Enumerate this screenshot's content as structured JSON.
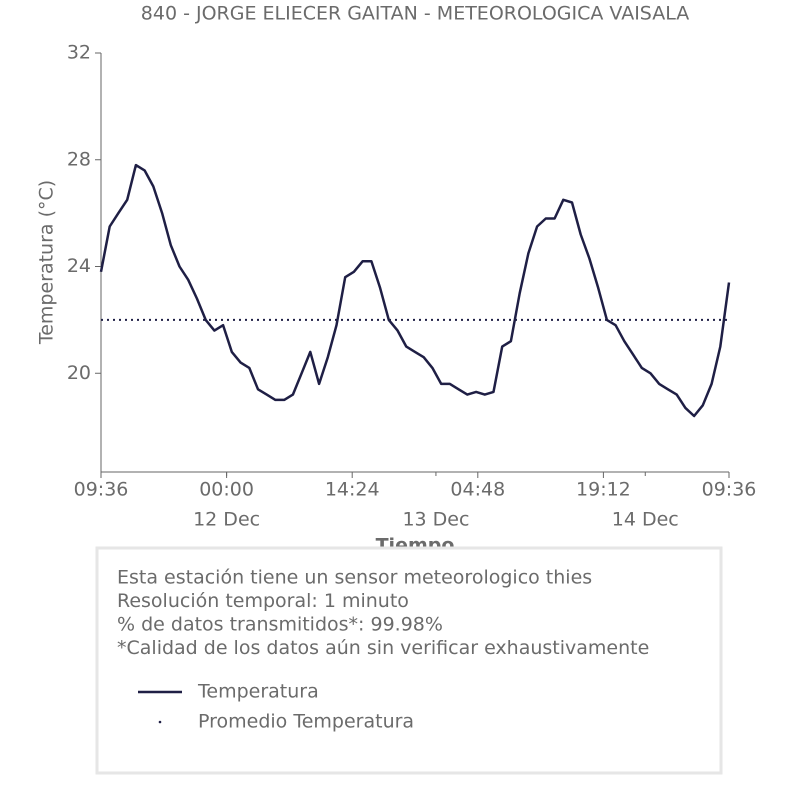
{
  "chart_data": {
    "type": "line",
    "title": "840 - JORGE ELIECER GAITAN - METEOROLOGICA VAISALA",
    "x_label": "Tiempo",
    "y_label": "Temperatura (°C)",
    "x": [
      "11 Dec 09:36",
      "11 Dec 10:36",
      "11 Dec 11:36",
      "11 Dec 12:36",
      "11 Dec 13:36",
      "11 Dec 14:36",
      "11 Dec 15:36",
      "11 Dec 16:36",
      "11 Dec 17:36",
      "11 Dec 18:36",
      "11 Dec 19:36",
      "11 Dec 20:36",
      "11 Dec 21:36",
      "11 Dec 22:36",
      "11 Dec 23:36",
      "12 Dec 00:36",
      "12 Dec 01:36",
      "12 Dec 02:36",
      "12 Dec 03:36",
      "12 Dec 04:36",
      "12 Dec 05:36",
      "12 Dec 06:36",
      "12 Dec 07:36",
      "12 Dec 08:36",
      "12 Dec 09:36",
      "12 Dec 10:36",
      "12 Dec 11:36",
      "12 Dec 12:36",
      "12 Dec 13:36",
      "12 Dec 14:36",
      "12 Dec 15:36",
      "12 Dec 16:36",
      "12 Dec 17:36",
      "12 Dec 18:36",
      "12 Dec 19:36",
      "12 Dec 20:36",
      "12 Dec 21:36",
      "12 Dec 22:36",
      "12 Dec 23:36",
      "13 Dec 00:36",
      "13 Dec 01:36",
      "13 Dec 02:36",
      "13 Dec 03:36",
      "13 Dec 04:36",
      "13 Dec 05:36",
      "13 Dec 06:36",
      "13 Dec 07:36",
      "13 Dec 08:36",
      "13 Dec 09:36",
      "13 Dec 10:36",
      "13 Dec 11:36",
      "13 Dec 12:36",
      "13 Dec 13:36",
      "13 Dec 14:36",
      "13 Dec 15:36",
      "13 Dec 16:36",
      "13 Dec 17:36",
      "13 Dec 18:36",
      "13 Dec 19:36",
      "13 Dec 20:36",
      "13 Dec 21:36",
      "13 Dec 22:36",
      "13 Dec 23:36",
      "14 Dec 00:36",
      "14 Dec 01:36",
      "14 Dec 02:36",
      "14 Dec 03:36",
      "14 Dec 04:36",
      "14 Dec 05:36",
      "14 Dec 06:36",
      "14 Dec 07:36",
      "14 Dec 08:36",
      "14 Dec 09:36"
    ],
    "series": [
      {
        "name": "Temperatura",
        "color": "#1f1f45",
        "values": [
          23.8,
          25.5,
          26.0,
          26.5,
          27.8,
          27.6,
          27.0,
          26.0,
          24.8,
          24.0,
          23.5,
          22.8,
          22.0,
          21.6,
          21.8,
          20.8,
          20.4,
          20.2,
          19.4,
          19.2,
          19.0,
          19.0,
          19.2,
          20.0,
          20.8,
          19.6,
          20.6,
          21.8,
          23.6,
          23.8,
          24.2,
          24.2,
          23.2,
          22.0,
          21.6,
          21.0,
          20.8,
          20.6,
          20.2,
          19.6,
          19.6,
          19.4,
          19.2,
          19.3,
          19.2,
          19.3,
          21.0,
          21.2,
          23.0,
          24.5,
          25.5,
          25.8,
          25.8,
          26.5,
          26.4,
          25.2,
          24.3,
          23.2,
          22.0,
          21.8,
          21.2,
          20.7,
          20.2,
          20.0,
          19.6,
          19.4,
          19.2,
          18.7,
          18.4,
          18.8,
          19.6,
          21.0,
          23.4
        ]
      },
      {
        "name": "Promedio Temperatura",
        "color": "#1f1f45",
        "value": 22.0
      }
    ],
    "xlim": [
      "11 Dec 09:36",
      "14 Dec 09:36"
    ],
    "xticks": [
      {
        "value": "11 Dec 09:36",
        "label": "09:36"
      },
      {
        "value": "12 Dec 00:00",
        "label": "00:00"
      },
      {
        "value": "12 Dec 14:24",
        "label": "14:24"
      },
      {
        "value": "13 Dec 04:48",
        "label": "04:48"
      },
      {
        "value": "13 Dec 19:12",
        "label": "19:12"
      },
      {
        "value": "14 Dec 09:36",
        "label": "09:36"
      }
    ],
    "date_ticks": [
      {
        "value": "12 Dec 00:00",
        "label": "12 Dec"
      },
      {
        "value": "13 Dec 00:00",
        "label": "13 Dec"
      },
      {
        "value": "14 Dec 00:00",
        "label": "14 Dec"
      }
    ],
    "ylim": [
      16.3,
      32
    ],
    "yticks": [
      20,
      24,
      28,
      32
    ],
    "info": [
      "Esta estación tiene un sensor meteorologico thies",
      "Resolución temporal: 1 minuto",
      "% de datos transmitidos*: 99.98%",
      "*Calidad de los datos aún sin verificar exhaustivamente"
    ]
  }
}
